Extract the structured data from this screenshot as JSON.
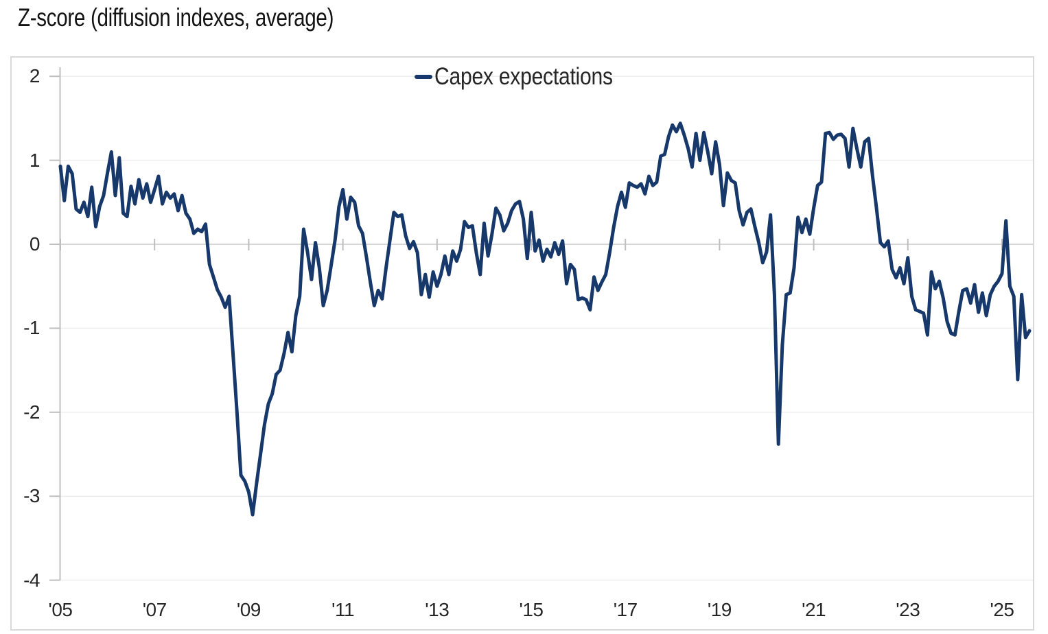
{
  "title": "Z-score (diffusion indexes, average)",
  "legend": {
    "series_label": "Capex expectations"
  },
  "colors": {
    "line": "#17386a",
    "zero_gridline": "#d6d6d6",
    "faint_gridline": "#efefef",
    "axis": "#bfbfbf",
    "frame_border": "#d9d9d9",
    "text": "#262626"
  },
  "chart_data": {
    "type": "line",
    "title": "Z-score (diffusion indexes, average)",
    "xlabel": "",
    "ylabel": "Z-score (diffusion indexes, average)",
    "ylim": [
      -4,
      2
    ],
    "y_ticks": [
      2,
      1,
      0,
      -1,
      -2,
      -3,
      -4
    ],
    "x_tick_labels": [
      "'05",
      "'07",
      "'09",
      "'11",
      "'13",
      "'15",
      "'17",
      "'19",
      "'21",
      "'23",
      "'25"
    ],
    "x_start": "2005-01",
    "frequency": "monthly",
    "grid": "faint horizontal gridlines at integers, darker line at zero, year tick marks crossing zero line",
    "legend_position": "top-center",
    "series": [
      {
        "name": "Capex expectations",
        "color": "#17386a",
        "values": [
          0.93,
          0.52,
          0.93,
          0.84,
          0.42,
          0.38,
          0.5,
          0.33,
          0.68,
          0.21,
          0.45,
          0.58,
          0.85,
          1.1,
          0.58,
          1.03,
          0.37,
          0.33,
          0.69,
          0.48,
          0.77,
          0.55,
          0.72,
          0.5,
          0.65,
          0.81,
          0.48,
          0.62,
          0.55,
          0.6,
          0.4,
          0.58,
          0.37,
          0.3,
          0.13,
          0.18,
          0.15,
          0.24,
          -0.24,
          -0.39,
          -0.54,
          -0.63,
          -0.75,
          -0.62,
          -1.3,
          -2.0,
          -2.75,
          -2.82,
          -2.95,
          -3.22,
          -2.85,
          -2.5,
          -2.15,
          -1.9,
          -1.78,
          -1.55,
          -1.5,
          -1.3,
          -1.05,
          -1.28,
          -0.85,
          -0.62,
          0.18,
          -0.1,
          -0.42,
          0.02,
          -0.28,
          -0.73,
          -0.55,
          -0.25,
          0.05,
          0.45,
          0.65,
          0.3,
          0.56,
          0.5,
          0.22,
          0.13,
          -0.15,
          -0.45,
          -0.73,
          -0.55,
          -0.65,
          -0.28,
          0.05,
          0.38,
          0.33,
          0.35,
          0.1,
          -0.05,
          0.03,
          -0.1,
          -0.6,
          -0.36,
          -0.63,
          -0.33,
          -0.5,
          -0.36,
          -0.14,
          -0.36,
          -0.08,
          -0.2,
          -0.06,
          0.27,
          0.2,
          0.22,
          -0.1,
          -0.36,
          0.25,
          -0.14,
          0.12,
          0.43,
          0.35,
          0.16,
          0.25,
          0.4,
          0.48,
          0.51,
          0.3,
          -0.17,
          0.38,
          -0.08,
          0.05,
          -0.2,
          -0.06,
          -0.15,
          0.02,
          -0.12,
          0.04,
          -0.47,
          -0.24,
          -0.3,
          -0.66,
          -0.64,
          -0.66,
          -0.78,
          -0.39,
          -0.55,
          -0.45,
          -0.36,
          -0.1,
          0.2,
          0.45,
          0.62,
          0.44,
          0.73,
          0.7,
          0.68,
          0.72,
          0.6,
          0.81,
          0.7,
          0.74,
          1.05,
          1.07,
          1.28,
          1.42,
          1.34,
          1.44,
          1.3,
          1.14,
          0.92,
          1.32,
          1.0,
          1.33,
          1.1,
          0.84,
          1.22,
          0.95,
          0.46,
          0.85,
          0.76,
          0.73,
          0.4,
          0.23,
          0.38,
          0.42,
          0.21,
          0.02,
          -0.22,
          -0.09,
          0.35,
          -0.6,
          -2.38,
          -1.2,
          -0.6,
          -0.58,
          -0.28,
          0.32,
          0.14,
          0.3,
          0.12,
          0.43,
          0.7,
          0.74,
          1.32,
          1.33,
          1.25,
          1.3,
          1.31,
          1.26,
          0.92,
          1.38,
          1.14,
          0.92,
          1.22,
          1.26,
          0.81,
          0.43,
          0.02,
          -0.03,
          0.04,
          -0.3,
          -0.4,
          -0.28,
          -0.47,
          -0.16,
          -0.62,
          -0.78,
          -0.8,
          -0.82,
          -1.08,
          -0.33,
          -0.53,
          -0.44,
          -0.64,
          -0.92,
          -1.06,
          -1.08,
          -0.8,
          -0.55,
          -0.53,
          -0.7,
          -0.48,
          -0.81,
          -0.58,
          -0.85,
          -0.6,
          -0.5,
          -0.44,
          -0.35,
          0.28,
          -0.5,
          -0.62,
          -1.61,
          -0.6,
          -1.11,
          -1.03
        ]
      }
    ]
  }
}
